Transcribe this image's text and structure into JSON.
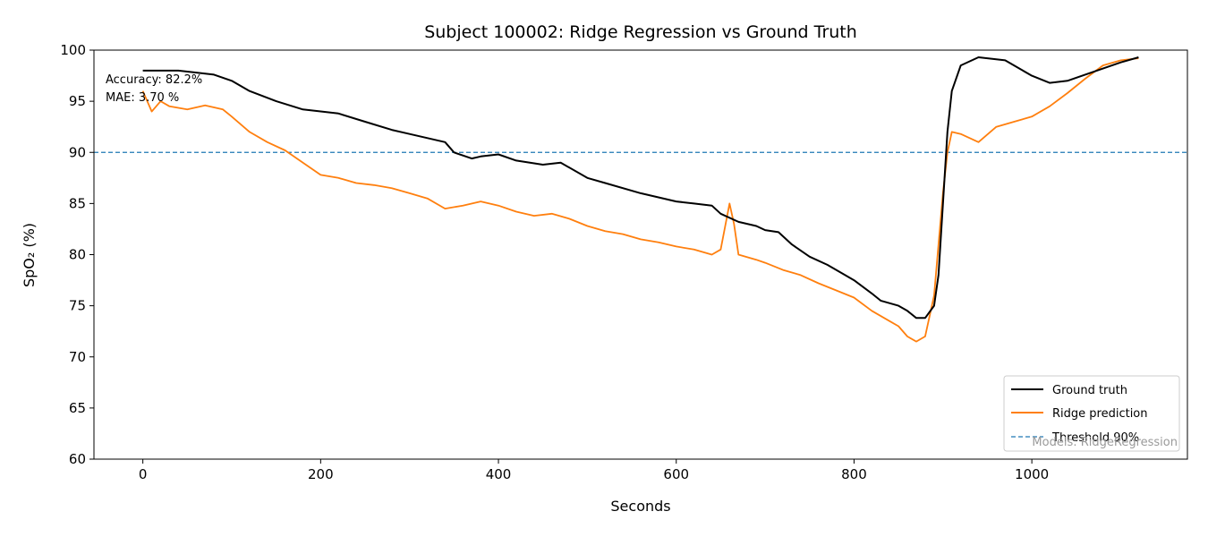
{
  "chart_data": {
    "type": "line",
    "title": "Subject 100002: Ridge Regression vs Ground Truth",
    "xlabel": "Seconds",
    "ylabel": "SpO₂ (%)",
    "xlim": [
      -55,
      1175
    ],
    "ylim": [
      60,
      100
    ],
    "xticks": [
      0,
      200,
      400,
      600,
      800,
      1000
    ],
    "yticks": [
      60,
      65,
      70,
      75,
      80,
      85,
      90,
      95,
      100
    ],
    "grid": false,
    "legend_position": "lower-right",
    "annotations": {
      "accuracy": "Accuracy: 82.2%",
      "mae": "MAE: 3.70 %",
      "watermark": "Models: RidgeRegression"
    },
    "threshold": {
      "name": "Threshold 90%",
      "value": 90,
      "color": "#1f77b4",
      "style": "dashed"
    },
    "series": [
      {
        "name": "Ground truth",
        "color": "#000000",
        "points": [
          [
            0,
            98
          ],
          [
            40,
            98
          ],
          [
            60,
            97.8
          ],
          [
            80,
            97.6
          ],
          [
            100,
            97
          ],
          [
            120,
            96
          ],
          [
            150,
            95
          ],
          [
            180,
            94.2
          ],
          [
            220,
            93.8
          ],
          [
            250,
            93
          ],
          [
            280,
            92.2
          ],
          [
            300,
            91.8
          ],
          [
            340,
            91
          ],
          [
            350,
            90
          ],
          [
            370,
            89.4
          ],
          [
            380,
            89.6
          ],
          [
            400,
            89.8
          ],
          [
            420,
            89.2
          ],
          [
            450,
            88.8
          ],
          [
            470,
            89
          ],
          [
            500,
            87.5
          ],
          [
            520,
            87
          ],
          [
            560,
            86
          ],
          [
            600,
            85.2
          ],
          [
            620,
            85
          ],
          [
            640,
            84.8
          ],
          [
            650,
            84
          ],
          [
            670,
            83.2
          ],
          [
            690,
            82.8
          ],
          [
            700,
            82.4
          ],
          [
            715,
            82.2
          ],
          [
            730,
            81
          ],
          [
            750,
            79.8
          ],
          [
            770,
            79
          ],
          [
            790,
            78
          ],
          [
            800,
            77.5
          ],
          [
            820,
            76.2
          ],
          [
            830,
            75.5
          ],
          [
            850,
            75
          ],
          [
            860,
            74.5
          ],
          [
            870,
            73.8
          ],
          [
            880,
            73.8
          ],
          [
            890,
            75
          ],
          [
            895,
            78
          ],
          [
            900,
            85
          ],
          [
            905,
            92
          ],
          [
            910,
            96
          ],
          [
            920,
            98.5
          ],
          [
            940,
            99.3
          ],
          [
            970,
            99
          ],
          [
            990,
            98
          ],
          [
            1000,
            97.5
          ],
          [
            1020,
            96.8
          ],
          [
            1040,
            97
          ],
          [
            1060,
            97.6
          ],
          [
            1080,
            98.2
          ],
          [
            1100,
            98.8
          ],
          [
            1120,
            99.3
          ]
        ]
      },
      {
        "name": "Ridge prediction",
        "color": "#ff7f0e",
        "points": [
          [
            0,
            96
          ],
          [
            10,
            94
          ],
          [
            20,
            95
          ],
          [
            30,
            94.5
          ],
          [
            50,
            94.2
          ],
          [
            70,
            94.6
          ],
          [
            90,
            94.2
          ],
          [
            100,
            93.5
          ],
          [
            120,
            92
          ],
          [
            140,
            91
          ],
          [
            160,
            90.2
          ],
          [
            180,
            89
          ],
          [
            200,
            87.8
          ],
          [
            220,
            87.5
          ],
          [
            240,
            87
          ],
          [
            260,
            86.8
          ],
          [
            280,
            86.5
          ],
          [
            300,
            86
          ],
          [
            320,
            85.5
          ],
          [
            340,
            84.5
          ],
          [
            360,
            84.8
          ],
          [
            380,
            85.2
          ],
          [
            400,
            84.8
          ],
          [
            420,
            84.2
          ],
          [
            440,
            83.8
          ],
          [
            460,
            84
          ],
          [
            480,
            83.5
          ],
          [
            500,
            82.8
          ],
          [
            520,
            82.3
          ],
          [
            540,
            82
          ],
          [
            560,
            81.5
          ],
          [
            580,
            81.2
          ],
          [
            600,
            80.8
          ],
          [
            620,
            80.5
          ],
          [
            640,
            80
          ],
          [
            650,
            80.5
          ],
          [
            660,
            85
          ],
          [
            665,
            83
          ],
          [
            670,
            80
          ],
          [
            690,
            79.5
          ],
          [
            700,
            79.2
          ],
          [
            720,
            78.5
          ],
          [
            740,
            78
          ],
          [
            760,
            77.2
          ],
          [
            780,
            76.5
          ],
          [
            800,
            75.8
          ],
          [
            820,
            74.5
          ],
          [
            840,
            73.5
          ],
          [
            850,
            73
          ],
          [
            860,
            72
          ],
          [
            870,
            71.5
          ],
          [
            880,
            72
          ],
          [
            890,
            76
          ],
          [
            900,
            86
          ],
          [
            905,
            90
          ],
          [
            910,
            92
          ],
          [
            920,
            91.8
          ],
          [
            940,
            91
          ],
          [
            960,
            92.5
          ],
          [
            980,
            93
          ],
          [
            1000,
            93.5
          ],
          [
            1020,
            94.5
          ],
          [
            1040,
            95.8
          ],
          [
            1060,
            97.2
          ],
          [
            1080,
            98.5
          ],
          [
            1100,
            99
          ],
          [
            1120,
            99.2
          ]
        ]
      }
    ]
  }
}
